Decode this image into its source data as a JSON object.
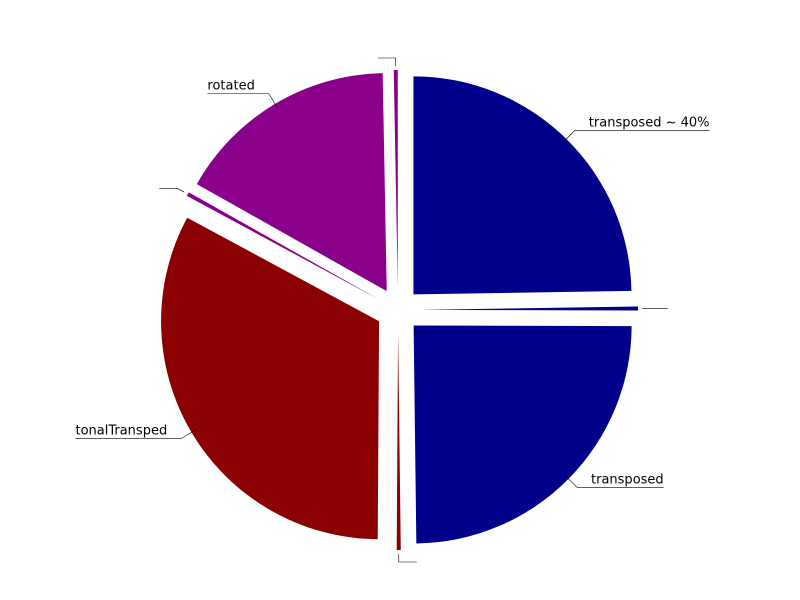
{
  "chart_data": {
    "type": "pie",
    "title": "",
    "exploded": true,
    "start": "top",
    "direction": "clockwise",
    "slices": [
      {
        "label": "transposed ~ 40%",
        "value": 25,
        "color": "#00008B"
      },
      {
        "label": "",
        "value": 0.3,
        "color": "#00008B"
      },
      {
        "label": "transposed",
        "value": 25,
        "color": "#00008B"
      },
      {
        "label": "",
        "value": 0.3,
        "color": "#8B0000"
      },
      {
        "label": "tonalTransped",
        "value": 33.1,
        "color": "#8B0000"
      },
      {
        "label": "",
        "value": 0.3,
        "color": "#8B008B"
      },
      {
        "label": "rotated",
        "value": 16.7,
        "color": "#8B008B"
      },
      {
        "label": "",
        "value": 0.3,
        "color": "#8B008B"
      }
    ]
  }
}
